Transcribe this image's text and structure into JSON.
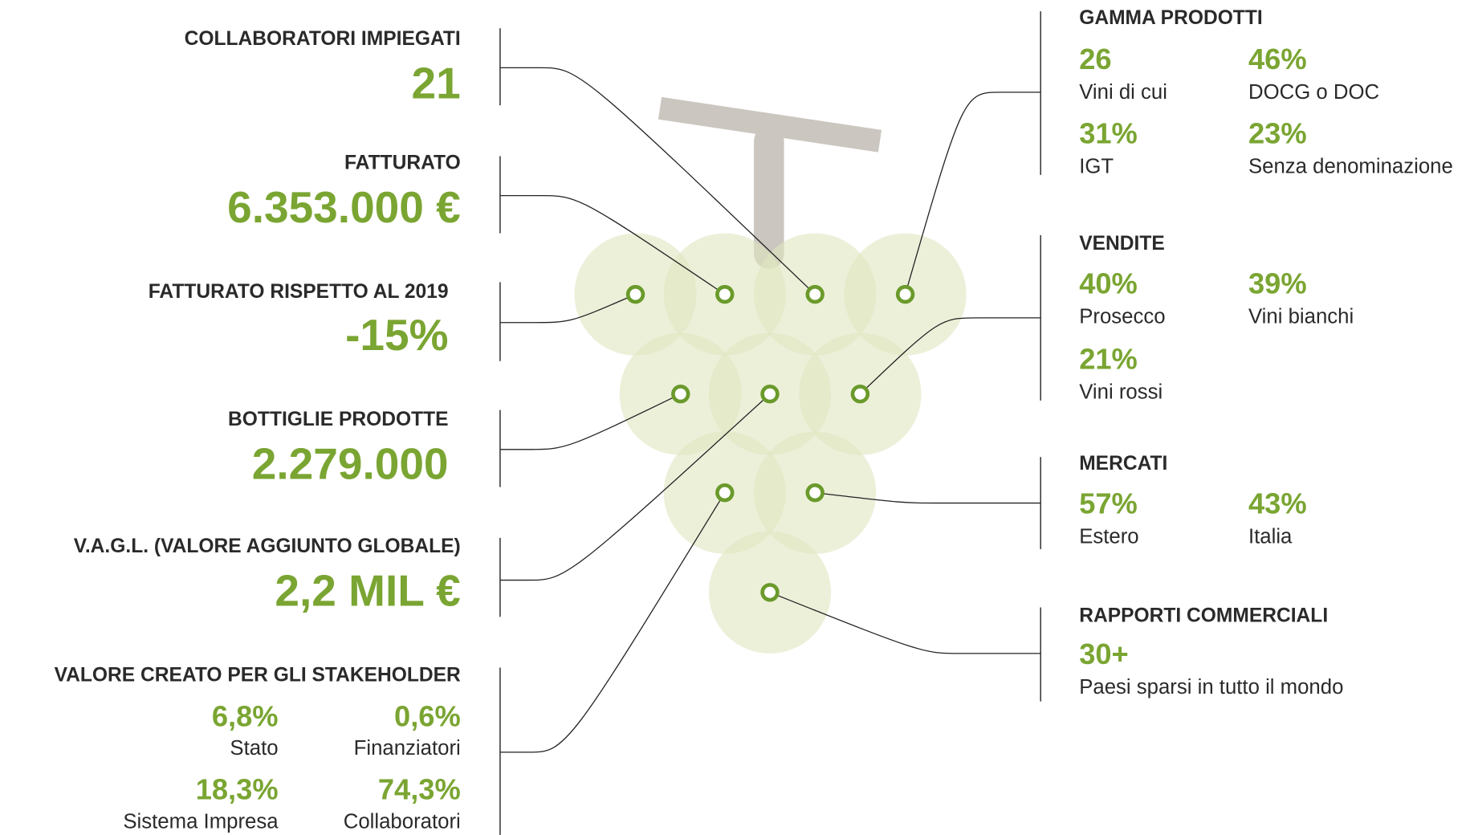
{
  "left": [
    {
      "label": "COLLABORATORI IMPIEGATI",
      "value": "21"
    },
    {
      "label": "FATTURATO",
      "value": "6.353.000 €"
    },
    {
      "label": "FATTURATO RISPETTO AL 2019",
      "value": "-15%"
    },
    {
      "label": "BOTTIGLIE PRODOTTE",
      "value": "2.279.000"
    },
    {
      "label": "V.A.G.L. (VALORE AGGIUNTO GLOBALE)",
      "value": "2,2 MIL €"
    },
    {
      "label": "VALORE CREATO PER GLI STAKEHOLDER",
      "items": [
        {
          "value": "6,8%",
          "caption": "Stato"
        },
        {
          "value": "0,6%",
          "caption": "Finanziatori"
        },
        {
          "value": "18,3%",
          "caption": "Sistema Impresa"
        },
        {
          "value": "74,3%",
          "caption": "Collaboratori"
        }
      ]
    }
  ],
  "right": [
    {
      "label": "GAMMA PRODOTTI",
      "items": [
        {
          "value": "26",
          "caption": "Vini di cui"
        },
        {
          "value": "46%",
          "caption": "DOCG o DOC"
        },
        {
          "value": "31%",
          "caption": "IGT"
        },
        {
          "value": "23%",
          "caption": "Senza denominazione"
        }
      ]
    },
    {
      "label": "VENDITE",
      "items": [
        {
          "value": "40%",
          "caption": "Prosecco"
        },
        {
          "value": "39%",
          "caption": "Vini bianchi"
        },
        {
          "value": "21%",
          "caption": "Vini rossi"
        }
      ]
    },
    {
      "label": "MERCATI",
      "items": [
        {
          "value": "57%",
          "caption": "Estero"
        },
        {
          "value": "43%",
          "caption": "Italia"
        }
      ]
    },
    {
      "label": "RAPPORTI COMMERCIALI",
      "items": [
        {
          "value": "30+",
          "caption": "Paesi sparsi in tutto il mondo"
        }
      ]
    }
  ]
}
